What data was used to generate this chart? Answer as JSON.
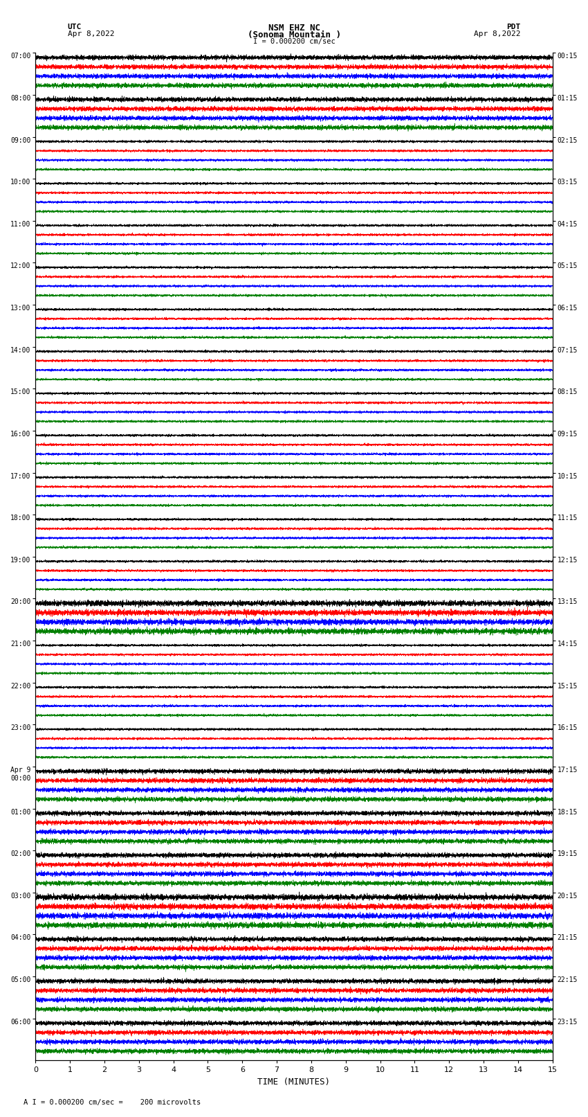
{
  "title_line1": "NSM EHZ NC",
  "title_line2": "(Sonoma Mountain )",
  "scale_bar_text": "I = 0.000200 cm/sec",
  "label_left_top1": "UTC",
  "label_left_top2": "Apr 8,2022",
  "label_right_top1": "PDT",
  "label_right_top2": "Apr 8,2022",
  "xlabel": "TIME (MINUTES)",
  "bottom_note": "A I = 0.000200 cm/sec =    200 microvolts",
  "utc_times": [
    "07:00",
    "08:00",
    "09:00",
    "10:00",
    "11:00",
    "12:00",
    "13:00",
    "14:00",
    "15:00",
    "16:00",
    "17:00",
    "18:00",
    "19:00",
    "20:00",
    "21:00",
    "22:00",
    "23:00",
    "Apr 9\n00:00",
    "01:00",
    "02:00",
    "03:00",
    "04:00",
    "05:00",
    "06:00"
  ],
  "pdt_times": [
    "00:15",
    "01:15",
    "02:15",
    "03:15",
    "04:15",
    "05:15",
    "06:15",
    "07:15",
    "08:15",
    "09:15",
    "10:15",
    "11:15",
    "12:15",
    "13:15",
    "14:15",
    "15:15",
    "16:15",
    "17:15",
    "18:15",
    "19:15",
    "20:15",
    "21:15",
    "22:15",
    "23:15"
  ],
  "colors": [
    "black",
    "red",
    "blue",
    "green"
  ],
  "n_hours": 24,
  "traces_per_hour": 4,
  "time_minutes": 15,
  "bg_color": "white",
  "high_amp_hours": [
    0,
    1,
    17,
    18,
    19,
    20,
    21,
    22,
    23
  ],
  "event_hours": [
    13,
    20
  ]
}
